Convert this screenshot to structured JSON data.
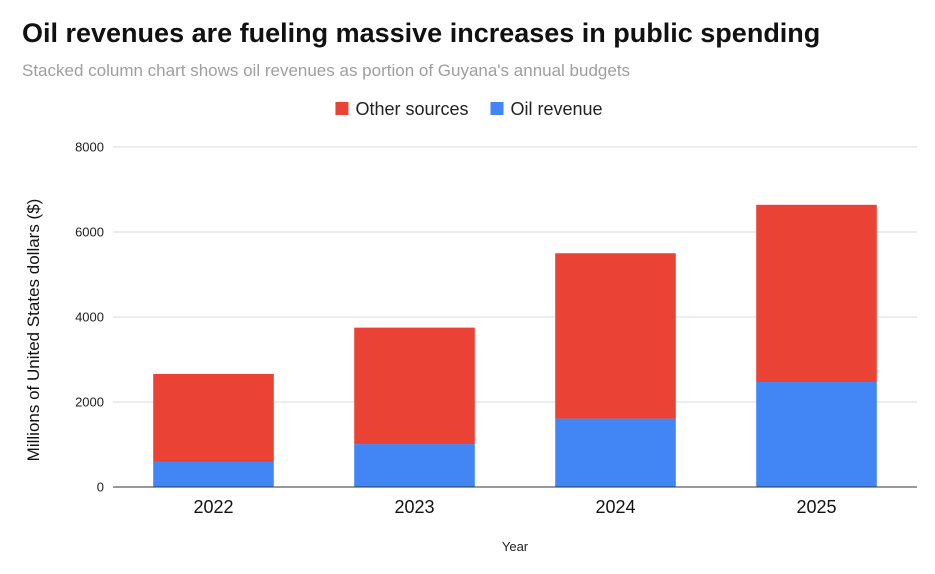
{
  "title": "Oil revenues are fueling massive increases in public spending",
  "subtitle": "Stacked column chart shows oil revenues as portion of Guyana's annual budgets",
  "chart_data": {
    "type": "bar",
    "stacked": true,
    "categories": [
      "2022",
      "2023",
      "2024",
      "2025"
    ],
    "series": [
      {
        "name": "Oil revenue",
        "color": "#4285f4",
        "values": [
          600,
          1010,
          1610,
          2470
        ]
      },
      {
        "name": "Other sources",
        "color": "#ea4335",
        "values": [
          2060,
          2740,
          3890,
          4170
        ]
      }
    ],
    "legend_order": [
      "Other sources",
      "Oil revenue"
    ],
    "legend_position": "top-center",
    "xlabel": "Year",
    "ylabel": "Millions of United States dollars ($)",
    "ylim": [
      0,
      8000
    ],
    "yticks": [
      "0",
      "2000",
      "4000",
      "6000",
      "8000"
    ],
    "grid": true
  }
}
